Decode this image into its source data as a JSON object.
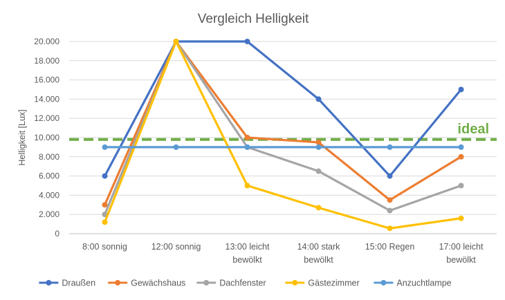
{
  "chart_data": {
    "type": "line",
    "title": "Vergleich Helligkeit",
    "xlabel": "",
    "ylabel": "Helligkeit [Lux]",
    "ylim": [
      0,
      20000
    ],
    "ytick_labels": [
      "0",
      "2.000",
      "4.000",
      "6.000",
      "8.000",
      "10.000",
      "12.000",
      "14.000",
      "16.000",
      "18.000",
      "20.000"
    ],
    "categories": [
      [
        "8:00 sonnig"
      ],
      [
        "12:00 sonnig"
      ],
      [
        "13:00 leicht",
        "bewölkt"
      ],
      [
        "14:00 stark",
        "bewölkt"
      ],
      [
        "15:00 Regen"
      ],
      [
        "17:00 leicht",
        "bewölkt"
      ]
    ],
    "series": [
      {
        "name": "Draußen",
        "color": "#4472c4",
        "values": [
          6000,
          20000,
          20000,
          14000,
          6000,
          15000
        ]
      },
      {
        "name": "Gewächshaus",
        "color": "#ed7d31",
        "values": [
          3000,
          20000,
          10000,
          9500,
          3500,
          8000
        ]
      },
      {
        "name": "Dachfenster",
        "color": "#a5a5a5",
        "values": [
          2000,
          20000,
          9000,
          6500,
          2400,
          5000
        ]
      },
      {
        "name": "Gästezimmer",
        "color": "#ffc000",
        "values": [
          1200,
          20000,
          5000,
          2700,
          550,
          1600
        ]
      },
      {
        "name": "Anzuchtlampe",
        "color": "#5b9bd5",
        "values": [
          9000,
          9000,
          9000,
          9000,
          9000,
          9000
        ]
      }
    ],
    "reference_line": {
      "label": "ideal",
      "value": 9800,
      "color": "#70ad47",
      "style": "dashed"
    },
    "grid": true,
    "legend": "bottom"
  }
}
